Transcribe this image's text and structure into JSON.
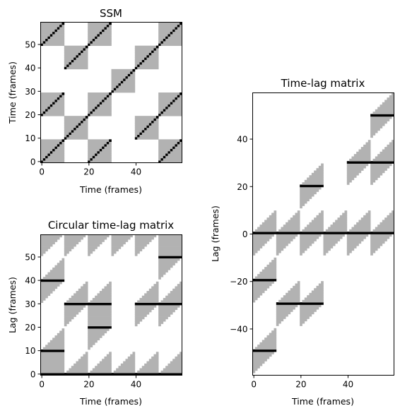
{
  "chart_data": [
    {
      "type": "heatmap",
      "title": "SSM",
      "xlabel": "Time (frames)",
      "ylabel": "Time (frames)",
      "xlim": [
        0,
        60
      ],
      "ylim": [
        0,
        60
      ],
      "xticks": [
        0,
        20,
        40
      ],
      "yticks": [
        0,
        10,
        20,
        30,
        40,
        50
      ],
      "block_size": 10,
      "block_labels": [
        0,
        1,
        0,
        2,
        1,
        0
      ],
      "colors": {
        "same_section": "#b2b2b2",
        "other": "#ffffff",
        "repeat": "#000000"
      }
    },
    {
      "type": "heatmap",
      "title": "Circular time-lag matrix",
      "xlabel": "Time (frames)",
      "ylabel": "Lag (frames)",
      "xlim": [
        0,
        60
      ],
      "ylim": [
        0,
        60
      ],
      "xticks": [
        0,
        20,
        40
      ],
      "yticks": [
        0,
        10,
        20,
        30,
        40,
        50
      ],
      "mode": "circular"
    },
    {
      "type": "heatmap",
      "title": "Time-lag matrix",
      "xlabel": "Time (frames)",
      "ylabel": "Lag (frames)",
      "xlim": [
        0,
        60
      ],
      "ylim": [
        -59,
        60
      ],
      "xticks": [
        0,
        20,
        40
      ],
      "yticks": [
        40,
        20,
        0,
        -20,
        -40
      ],
      "mode": "linear"
    }
  ]
}
